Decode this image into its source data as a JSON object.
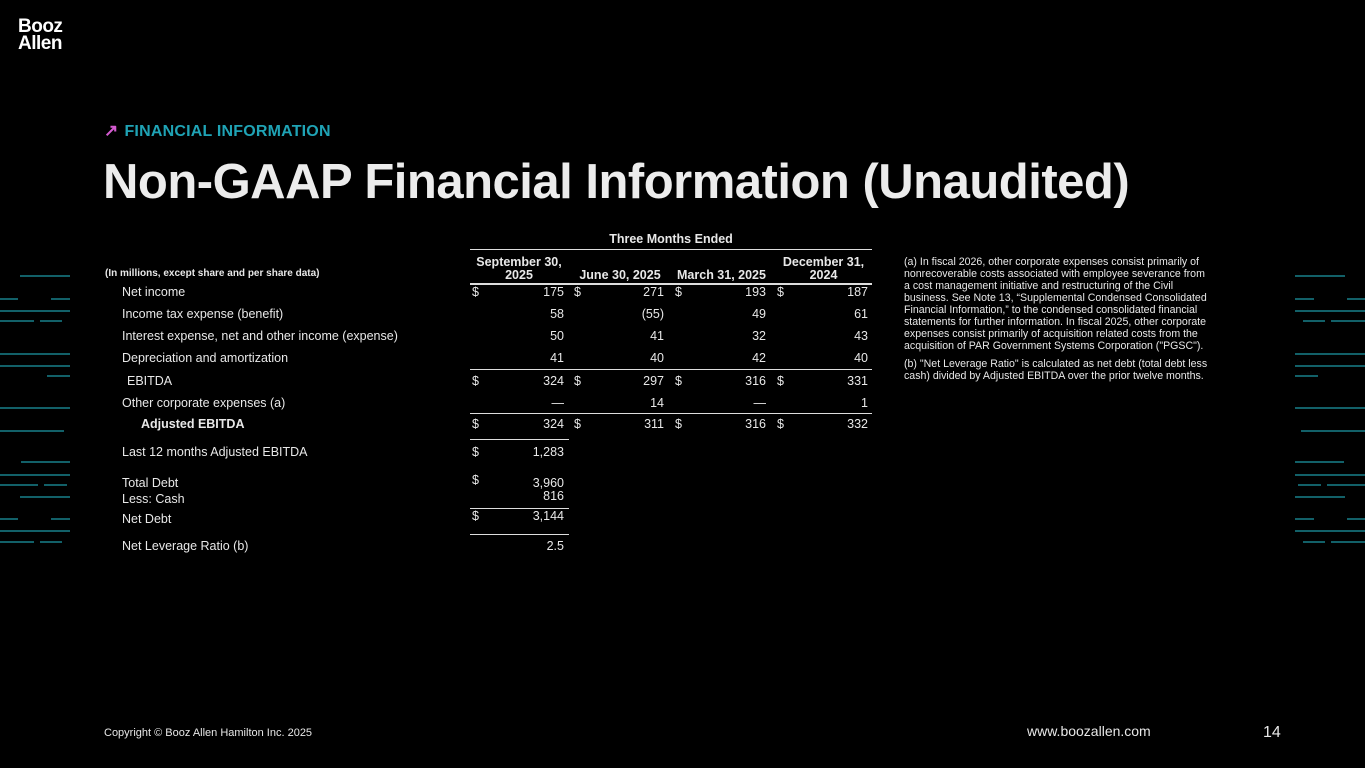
{
  "logo": {
    "line1": "Booz",
    "line2": "Allen"
  },
  "header": {
    "eyebrow": "FINANCIAL INFORMATION",
    "title": "Non-GAAP Financial Information (Unaudited)"
  },
  "colors": {
    "eyebrow": "#1fa3b5",
    "arrow": "#d45bd0",
    "decor_lines": "#1e9aa6",
    "background": "#000000"
  },
  "table": {
    "group_header": "Three Months Ended",
    "units_label": "(In millions, except share and per share data)",
    "columns": [
      "September 30, 2025",
      "June 30, 2025",
      "March 31, 2025",
      "December 31, 2024"
    ],
    "rows": [
      {
        "label": "Net income",
        "values": [
          "175",
          "271",
          "193",
          "187"
        ],
        "dollar": true
      },
      {
        "label": "Income tax expense (benefit)",
        "values": [
          "58",
          "(55)",
          "49",
          "61"
        ]
      },
      {
        "label": "Interest expense, net and other income (expense)",
        "values": [
          "50",
          "41",
          "32",
          "43"
        ]
      },
      {
        "label": "Depreciation and amortization",
        "values": [
          "41",
          "40",
          "42",
          "40"
        ]
      },
      {
        "label": "EBITDA",
        "values": [
          "324",
          "297",
          "316",
          "331"
        ],
        "dollar": true,
        "indent": true
      },
      {
        "label": "Other corporate expenses (a)",
        "values": [
          "—",
          "14",
          "—",
          "1"
        ]
      },
      {
        "label": "Adjusted EBITDA",
        "values": [
          "324",
          "311",
          "316",
          "332"
        ],
        "dollar": true,
        "indent": true,
        "bold": true
      },
      {
        "label": "Last 12 months Adjusted EBITDA",
        "values": [
          "1,283"
        ],
        "dollar": true
      },
      {
        "label": "Total Debt",
        "values": [
          "3,960"
        ],
        "dollar": true
      },
      {
        "label": "Less: Cash",
        "values": [
          "816"
        ]
      },
      {
        "label": "Net Debt",
        "values": [
          "3,144"
        ],
        "dollar": true
      },
      {
        "label": "Net Leverage Ratio (b)",
        "values": [
          "2.5"
        ]
      }
    ],
    "currency_symbol": "$"
  },
  "notes": [
    "(a) In fiscal 2026, other corporate expenses consist primarily of nonrecoverable costs associated with employee severance from a cost management initiative and restructuring of the Civil business. See Note 13, “Supplemental Condensed Consolidated Financial Information,” to the condensed consolidated financial statements for further information. In fiscal 2025, other corporate expenses consist primarily of acquisition related costs from the acquisition of PAR Government Systems Corporation (\"PGSC\").",
    "(b) \"Net Leverage Ratio\" is calculated as net debt (total debt less cash) divided by Adjusted EBITDA over the prior twelve months."
  ],
  "footer": {
    "copyright": "Copyright © Booz Allen Hamilton Inc. 2025",
    "website": "www.boozallen.com",
    "page_number": "14"
  }
}
